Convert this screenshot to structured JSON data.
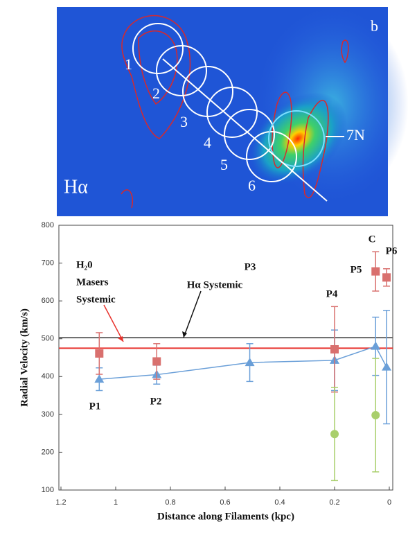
{
  "image": {
    "panel_label": "b",
    "line_label": "Hα",
    "regions": [
      "1",
      "2",
      "3",
      "4",
      "5",
      "6",
      "7N"
    ]
  },
  "chart_data": {
    "type": "line",
    "x_label": "Distance along Filaments (kpc)",
    "y_label": "Radial Velocity (km/s)",
    "xlim": [
      1.2,
      0
    ],
    "xticks": [
      1.2,
      1,
      0.8,
      0.6,
      0.4,
      0.2,
      0
    ],
    "ylim": [
      100,
      800
    ],
    "yticks": [
      100,
      200,
      300,
      400,
      500,
      600,
      700,
      800
    ],
    "series": [
      {
        "color": "#6a9fd8",
        "marker": "triangle",
        "line": true,
        "x": [
          1.06,
          0.85,
          0.51,
          0.2,
          0.05,
          0.01
        ],
        "values": [
          393,
          405,
          437,
          443,
          480,
          425
        ],
        "errors": [
          30,
          25,
          50,
          80,
          77,
          150
        ]
      },
      {
        "color": "#d9706e",
        "marker": "square",
        "line": false,
        "x": [
          1.06,
          0.85,
          0.2,
          0.05,
          0.01
        ],
        "values": [
          461,
          440,
          472,
          678,
          662
        ],
        "errors": [
          55,
          47,
          113,
          52,
          23
        ]
      },
      {
        "color": "#a9cf6c",
        "marker": "circle",
        "line": false,
        "x": [
          0.2,
          0.05
        ],
        "values": [
          248,
          298
        ],
        "errors": [
          123,
          150
        ]
      }
    ],
    "reference_lines": [
      {
        "label": [
          "Hα Systemic"
        ],
        "value": 503,
        "color": "#666"
      },
      {
        "label": [
          "H₂0",
          "Masers",
          "Systemic"
        ],
        "value": 475,
        "color": "#e8322c"
      }
    ],
    "annotations": [
      "P1",
      "P2",
      "P3",
      "P4",
      "P5",
      "P6",
      "C"
    ]
  }
}
